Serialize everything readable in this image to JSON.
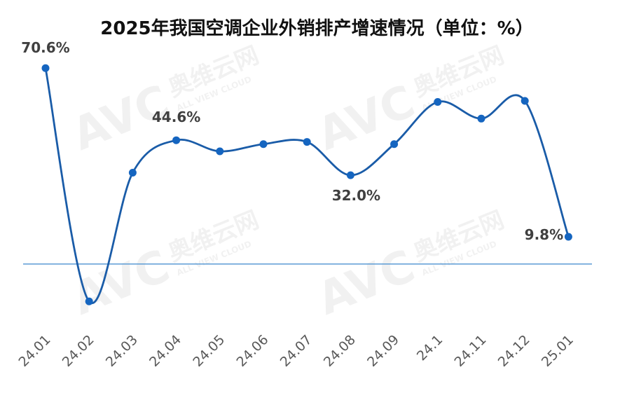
{
  "chart_data": {
    "type": "line",
    "title": "2025年我国空调企业外销排产增速情况（单位：%）",
    "watermark": {
      "logo": "AVC",
      "brand": "奥维云网",
      "slogan": "ALL VIEW CLOUD"
    },
    "categories": [
      "24.01",
      "24.02",
      "24.03",
      "24.04",
      "24.05",
      "24.06",
      "24.07",
      "24.08",
      "24.09",
      "24.1",
      "24.11",
      "24.12",
      "25.01"
    ],
    "series": [
      {
        "values": [
          70.6,
          -13.5,
          32.9,
          44.6,
          40.6,
          43.2,
          44.0,
          32.0,
          43.2,
          58.4,
          52.4,
          58.8,
          9.8
        ]
      }
    ],
    "data_labels": [
      {
        "index": 0,
        "text": "70.6%"
      },
      {
        "index": 3,
        "text": "44.6%"
      },
      {
        "index": 7,
        "text": "32.0%"
      },
      {
        "index": 12,
        "text": "9.8%"
      }
    ],
    "ylim": [
      -21,
      80
    ],
    "colors": {
      "line": "#1a5ca8",
      "point": "#1565c0",
      "axis": "#5b9bd5"
    },
    "grid": false,
    "legend": "none"
  }
}
